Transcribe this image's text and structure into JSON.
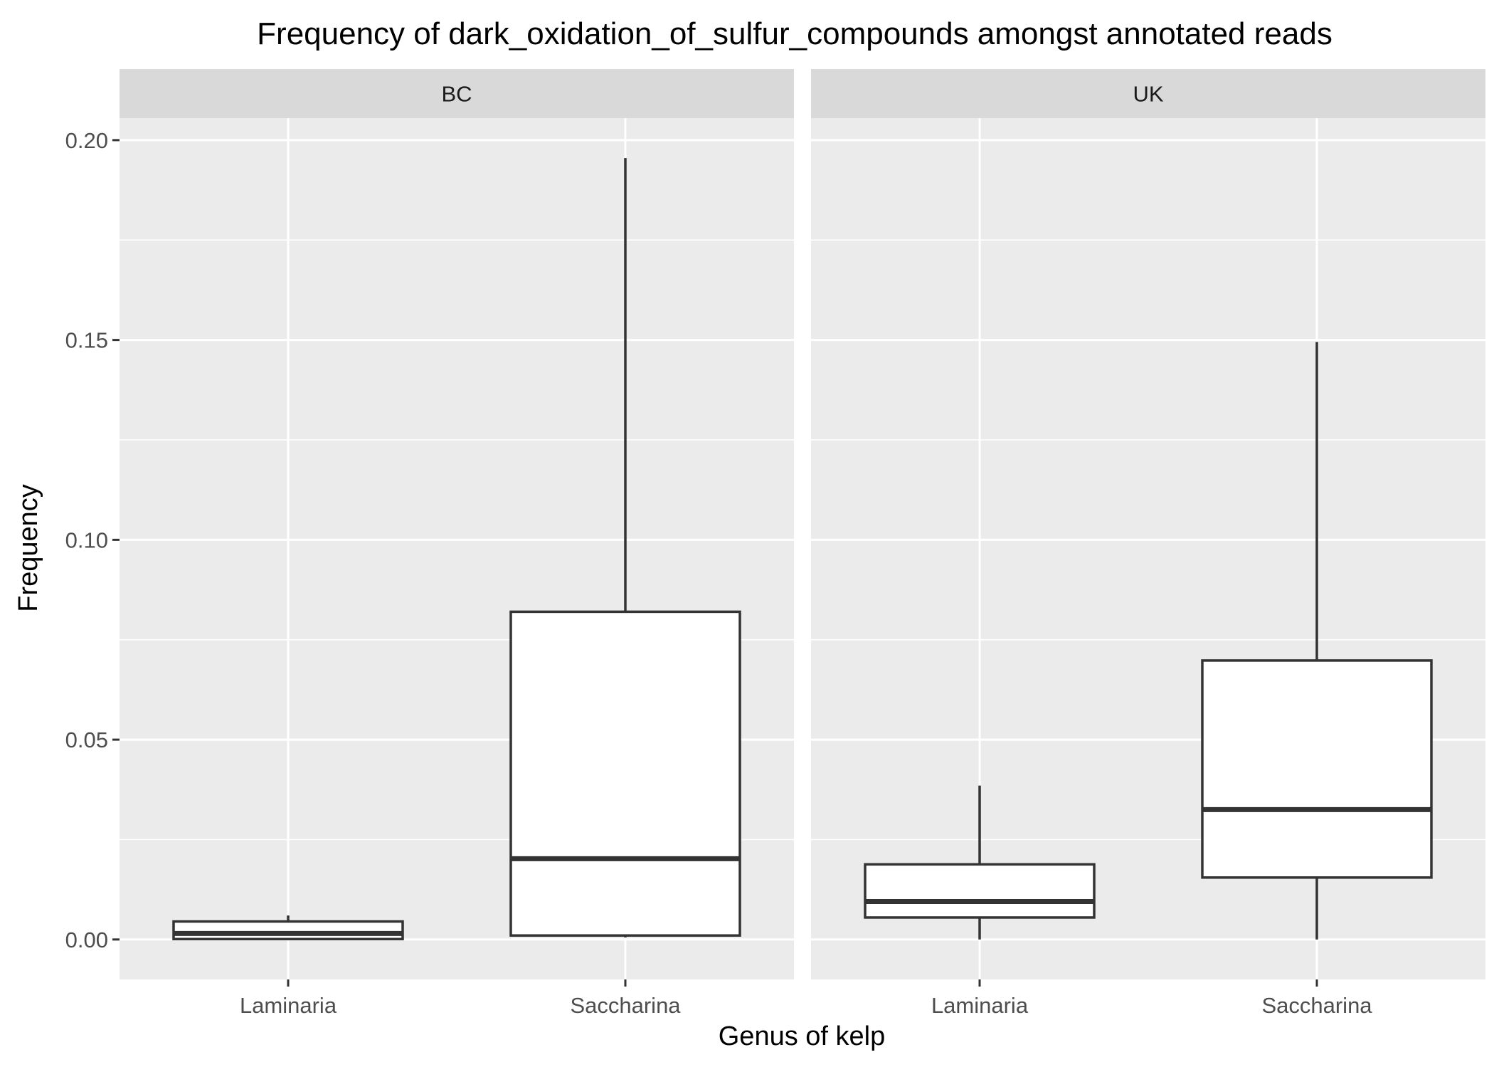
{
  "chart_data": {
    "type": "boxplot",
    "title": "Frequency of dark_oxidation_of_sulfur_compounds amongst annotated reads",
    "xlabel": "Genus of kelp",
    "ylabel": "Frequency",
    "ylim": [
      -0.01,
      0.2055
    ],
    "y_ticks": [
      0.0,
      0.05,
      0.1,
      0.15,
      0.2
    ],
    "y_tick_labels": [
      "0.00",
      "0.05",
      "0.10",
      "0.15",
      "0.20"
    ],
    "categories": [
      "Laminaria",
      "Saccharina"
    ],
    "grid": true,
    "legend": "none",
    "panels": [
      {
        "label": "BC",
        "boxes": [
          {
            "category": "Laminaria",
            "min": 0.0,
            "q1": 0.0001,
            "median": 0.0015,
            "q3": 0.0045,
            "max": 0.006
          },
          {
            "category": "Saccharina",
            "min": 0.0005,
            "q1": 0.001,
            "median": 0.0202,
            "q3": 0.082,
            "max": 0.1955
          }
        ]
      },
      {
        "label": "UK",
        "boxes": [
          {
            "category": "Laminaria",
            "min": 0.0,
            "q1": 0.0055,
            "median": 0.0095,
            "q3": 0.0188,
            "max": 0.0385
          },
          {
            "category": "Saccharina",
            "min": 0.0,
            "q1": 0.0155,
            "median": 0.0325,
            "q3": 0.0698,
            "max": 0.1495
          }
        ]
      }
    ],
    "colors": {
      "panel_background": "#ebebeb",
      "strip_background": "#d9d9d9",
      "grid": "#ffffff",
      "box_fill": "#ffffff",
      "box_line": "#333333",
      "tick_mark": "#333333"
    }
  }
}
